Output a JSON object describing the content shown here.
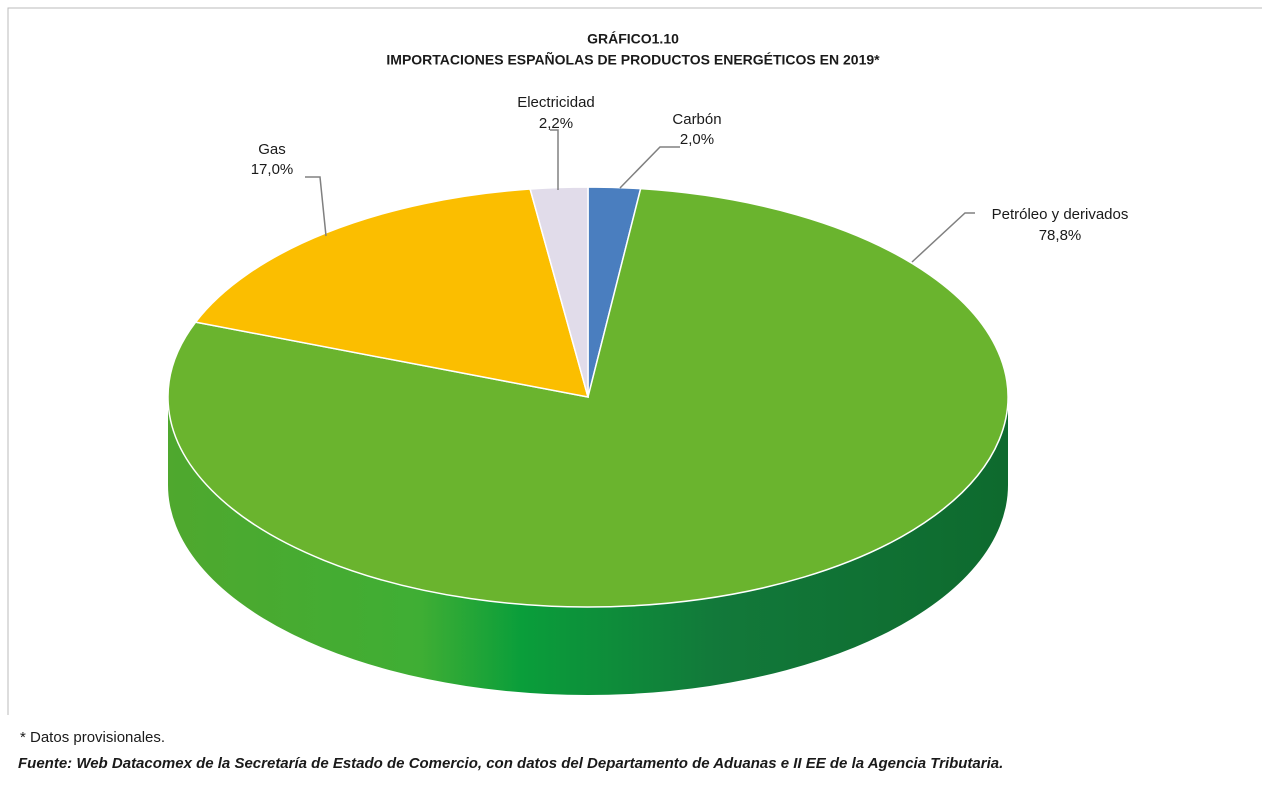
{
  "chart_data": {
    "type": "pie3d",
    "title": "GRÁFICO1.10",
    "subtitle": "IMPORTACIONES ESPAÑOLAS DE PRODUCTOS ENERGÉTICOS EN 2019*",
    "categories": [
      "Carbón",
      "Petróleo y derivados",
      "Gas",
      "Electricidad"
    ],
    "values": [
      2.0,
      78.8,
      17.0,
      2.2
    ],
    "value_labels": [
      "2,0%",
      "78,8%",
      "17,0%",
      "2,2%"
    ],
    "colors": [
      "#4a7ebf",
      "#6ab42e",
      "#fbbe00",
      "#e1dcea"
    ],
    "note": "* Datos provisionales.",
    "source": "Fuente: Web Datacomex de la Secretaría de Estado de Comercio, con datos del Departamento de Aduanas e II EE de la Agencia Tributaria."
  }
}
